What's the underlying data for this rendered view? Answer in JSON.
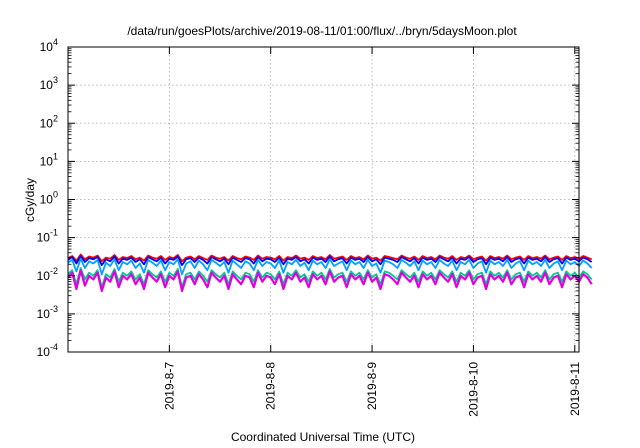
{
  "chart_data": {
    "type": "line",
    "title": "/data/run/goesPlots/archive/2019-08-11/01:00/flux/../bryn/5daysMoon.plot",
    "xlabel": "Coordinated Universal Time (UTC)",
    "ylabel": "cGy/day",
    "x_scale": "time",
    "x_range": [
      "2019-08-06 00:00",
      "2019-08-11 01:00"
    ],
    "x_ticks": [
      "2019-8-7",
      "2019-8-8",
      "2019-8-9",
      "2019-8-10",
      "2019-8-11"
    ],
    "y_scale": "log",
    "ylim": [
      0.0001,
      10000
    ],
    "y_ticks": [
      {
        "base": "10",
        "exp": "-4"
      },
      {
        "base": "10",
        "exp": "-3"
      },
      {
        "base": "10",
        "exp": "-2"
      },
      {
        "base": "10",
        "exp": "-1"
      },
      {
        "base": "10",
        "exp": "0"
      },
      {
        "base": "10",
        "exp": "1"
      },
      {
        "base": "10",
        "exp": "2"
      },
      {
        "base": "10",
        "exp": "3"
      },
      {
        "base": "10",
        "exp": "4"
      }
    ],
    "grid": true,
    "sample_step_hours": 1,
    "series": [
      {
        "color": "#ff0000",
        "values": [
          0.029,
          0.033,
          0.025,
          0.036,
          0.027,
          0.032,
          0.03,
          0.034,
          0.024,
          0.03,
          0.028,
          0.035,
          0.026,
          0.031,
          0.029,
          0.033,
          0.027,
          0.03,
          0.025,
          0.034,
          0.03,
          0.028,
          0.033,
          0.026,
          0.031,
          0.029,
          0.035,
          0.024,
          0.03,
          0.032,
          0.027,
          0.033,
          0.029,
          0.026,
          0.034,
          0.03,
          0.028,
          0.031,
          0.025,
          0.033,
          0.029,
          0.027,
          0.032,
          0.03,
          0.026,
          0.034,
          0.028,
          0.031,
          0.03,
          0.027,
          0.033,
          0.025,
          0.031,
          0.029,
          0.034,
          0.028,
          0.03,
          0.026,
          0.033,
          0.029,
          0.031,
          0.027,
          0.035,
          0.028,
          0.03,
          0.032,
          0.026,
          0.033,
          0.029,
          0.031,
          0.027,
          0.034,
          0.028,
          0.03,
          0.025,
          0.033,
          0.031,
          0.029,
          0.027,
          0.034,
          0.03,
          0.028,
          0.032,
          0.026,
          0.033,
          0.029,
          0.031,
          0.027,
          0.034,
          0.03,
          0.028,
          0.033,
          0.026,
          0.031,
          0.029,
          0.034,
          0.027,
          0.03,
          0.032,
          0.025,
          0.033,
          0.029,
          0.031,
          0.028,
          0.034,
          0.027,
          0.03,
          0.032,
          0.026,
          0.033,
          0.029,
          0.031,
          0.028,
          0.034,
          0.027,
          0.03,
          0.032,
          0.026,
          0.033,
          0.029,
          0.031,
          0.028,
          0.033,
          0.03,
          0.027
        ]
      },
      {
        "color": "#0000ff",
        "values": [
          0.026,
          0.031,
          0.021,
          0.033,
          0.023,
          0.029,
          0.027,
          0.031,
          0.019,
          0.027,
          0.024,
          0.032,
          0.021,
          0.028,
          0.026,
          0.03,
          0.023,
          0.027,
          0.02,
          0.031,
          0.027,
          0.024,
          0.03,
          0.021,
          0.028,
          0.026,
          0.032,
          0.019,
          0.027,
          0.029,
          0.023,
          0.03,
          0.026,
          0.021,
          0.031,
          0.027,
          0.024,
          0.028,
          0.02,
          0.03,
          0.026,
          0.023,
          0.029,
          0.027,
          0.021,
          0.031,
          0.024,
          0.028,
          0.027,
          0.023,
          0.03,
          0.02,
          0.028,
          0.026,
          0.031,
          0.024,
          0.027,
          0.021,
          0.03,
          0.026,
          0.028,
          0.023,
          0.032,
          0.024,
          0.027,
          0.029,
          0.021,
          0.03,
          0.026,
          0.028,
          0.023,
          0.031,
          0.024,
          0.027,
          0.02,
          0.03,
          0.028,
          0.026,
          0.023,
          0.031,
          0.027,
          0.024,
          0.029,
          0.021,
          0.03,
          0.026,
          0.028,
          0.023,
          0.031,
          0.027,
          0.024,
          0.03,
          0.021,
          0.028,
          0.026,
          0.031,
          0.023,
          0.027,
          0.029,
          0.02,
          0.03,
          0.026,
          0.028,
          0.024,
          0.031,
          0.023,
          0.027,
          0.029,
          0.021,
          0.03,
          0.026,
          0.028,
          0.024,
          0.031,
          0.023,
          0.027,
          0.029,
          0.021,
          0.03,
          0.026,
          0.028,
          0.024,
          0.03,
          0.027,
          0.023
        ]
      },
      {
        "color": "#00a0ff",
        "values": [
          0.022,
          0.026,
          0.013,
          0.028,
          0.016,
          0.024,
          0.021,
          0.026,
          0.011,
          0.022,
          0.018,
          0.027,
          0.014,
          0.023,
          0.02,
          0.025,
          0.016,
          0.021,
          0.012,
          0.026,
          0.022,
          0.018,
          0.025,
          0.014,
          0.023,
          0.02,
          0.027,
          0.011,
          0.021,
          0.024,
          0.016,
          0.025,
          0.02,
          0.014,
          0.026,
          0.022,
          0.018,
          0.023,
          0.012,
          0.025,
          0.02,
          0.016,
          0.024,
          0.021,
          0.014,
          0.026,
          0.018,
          0.023,
          0.021,
          0.016,
          0.025,
          0.012,
          0.023,
          0.02,
          0.026,
          0.018,
          0.022,
          0.014,
          0.025,
          0.02,
          0.023,
          0.016,
          0.027,
          0.018,
          0.021,
          0.024,
          0.014,
          0.025,
          0.02,
          0.023,
          0.016,
          0.026,
          0.018,
          0.021,
          0.012,
          0.025,
          0.023,
          0.02,
          0.016,
          0.026,
          0.022,
          0.018,
          0.024,
          0.014,
          0.025,
          0.02,
          0.023,
          0.016,
          0.026,
          0.021,
          0.018,
          0.025,
          0.014,
          0.023,
          0.02,
          0.026,
          0.016,
          0.021,
          0.024,
          0.012,
          0.025,
          0.02,
          0.023,
          0.018,
          0.026,
          0.016,
          0.021,
          0.024,
          0.014,
          0.025,
          0.02,
          0.023,
          0.018,
          0.026,
          0.016,
          0.021,
          0.024,
          0.014,
          0.025,
          0.02,
          0.023,
          0.018,
          0.025,
          0.021,
          0.016
        ]
      },
      {
        "color": "#00c890",
        "values": [
          0.011,
          0.014,
          0.006,
          0.016,
          0.008,
          0.012,
          0.01,
          0.014,
          0.005,
          0.011,
          0.009,
          0.015,
          0.007,
          0.012,
          0.01,
          0.013,
          0.008,
          0.011,
          0.006,
          0.014,
          0.011,
          0.009,
          0.013,
          0.007,
          0.012,
          0.01,
          0.015,
          0.005,
          0.011,
          0.012,
          0.008,
          0.013,
          0.01,
          0.007,
          0.014,
          0.011,
          0.009,
          0.012,
          0.006,
          0.013,
          0.01,
          0.008,
          0.012,
          0.011,
          0.007,
          0.014,
          0.009,
          0.012,
          0.011,
          0.008,
          0.013,
          0.006,
          0.012,
          0.01,
          0.014,
          0.009,
          0.011,
          0.007,
          0.013,
          0.01,
          0.012,
          0.008,
          0.015,
          0.009,
          0.011,
          0.012,
          0.007,
          0.013,
          0.01,
          0.012,
          0.008,
          0.014,
          0.009,
          0.011,
          0.006,
          0.013,
          0.012,
          0.01,
          0.008,
          0.014,
          0.011,
          0.009,
          0.012,
          0.007,
          0.013,
          0.01,
          0.012,
          0.008,
          0.014,
          0.011,
          0.009,
          0.013,
          0.007,
          0.012,
          0.01,
          0.014,
          0.008,
          0.011,
          0.012,
          0.006,
          0.013,
          0.01,
          0.012,
          0.009,
          0.014,
          0.008,
          0.011,
          0.012,
          0.007,
          0.013,
          0.01,
          0.012,
          0.009,
          0.014,
          0.008,
          0.011,
          0.012,
          0.007,
          0.013,
          0.01,
          0.012,
          0.009,
          0.013,
          0.011,
          0.008
        ]
      },
      {
        "color": "#e000e0",
        "values": [
          0.009,
          0.012,
          0.0045,
          0.014,
          0.0055,
          0.01,
          0.008,
          0.012,
          0.004,
          0.009,
          0.007,
          0.013,
          0.005,
          0.01,
          0.008,
          0.011,
          0.006,
          0.009,
          0.0045,
          0.012,
          0.009,
          0.007,
          0.011,
          0.005,
          0.01,
          0.008,
          0.013,
          0.004,
          0.009,
          0.01,
          0.006,
          0.011,
          0.008,
          0.005,
          0.012,
          0.009,
          0.007,
          0.01,
          0.0045,
          0.011,
          0.008,
          0.006,
          0.01,
          0.009,
          0.005,
          0.012,
          0.007,
          0.01,
          0.009,
          0.006,
          0.011,
          0.0045,
          0.01,
          0.008,
          0.012,
          0.007,
          0.009,
          0.005,
          0.011,
          0.008,
          0.01,
          0.006,
          0.013,
          0.007,
          0.009,
          0.01,
          0.005,
          0.011,
          0.008,
          0.01,
          0.006,
          0.012,
          0.007,
          0.009,
          0.0045,
          0.011,
          0.01,
          0.008,
          0.006,
          0.012,
          0.009,
          0.007,
          0.01,
          0.005,
          0.011,
          0.008,
          0.01,
          0.006,
          0.012,
          0.009,
          0.007,
          0.011,
          0.005,
          0.01,
          0.008,
          0.012,
          0.006,
          0.009,
          0.01,
          0.0045,
          0.011,
          0.008,
          0.01,
          0.007,
          0.012,
          0.006,
          0.009,
          0.01,
          0.005,
          0.011,
          0.008,
          0.01,
          0.007,
          0.012,
          0.006,
          0.009,
          0.01,
          0.005,
          0.011,
          0.008,
          0.01,
          0.007,
          0.011,
          0.009,
          0.006
        ]
      }
    ]
  }
}
